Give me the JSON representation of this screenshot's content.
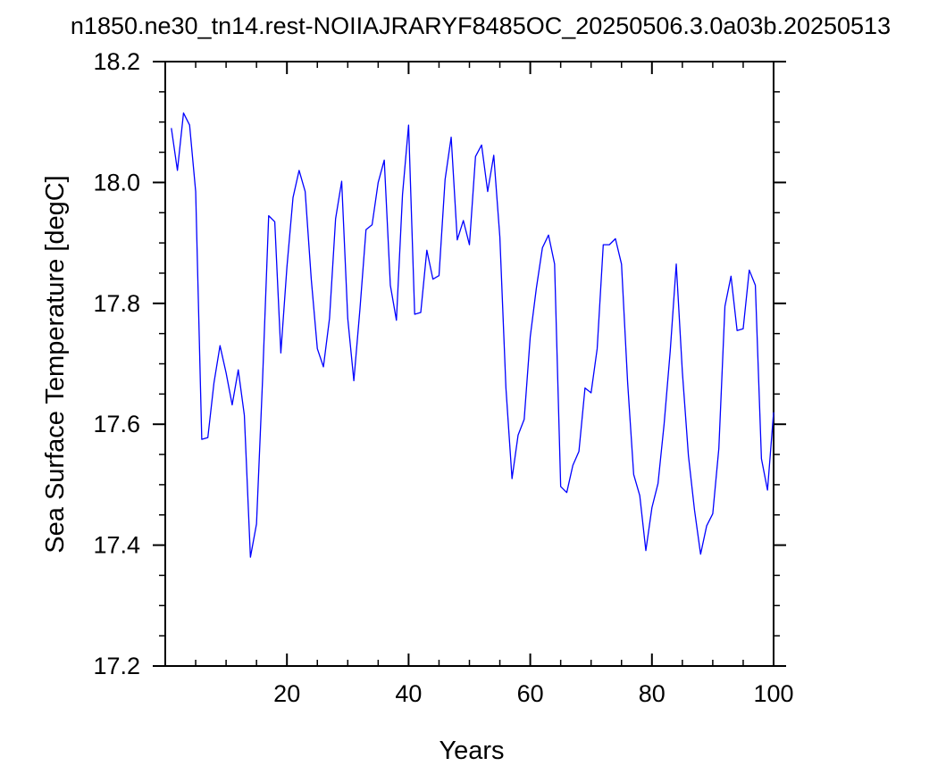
{
  "chart_data": {
    "type": "line",
    "title": "n1850.ne30_tn14.rest-NOIIAJRARYF8485OC_20250506.3.0a03b.20250513",
    "xlabel": "Years",
    "ylabel": "Sea Surface Temperature [degC]",
    "xlim": [
      0,
      100
    ],
    "ylim": [
      17.2,
      18.2
    ],
    "x_major_ticks": [
      20,
      40,
      60,
      80,
      100
    ],
    "x_major_tick_labels": [
      "20",
      "40",
      "60",
      "80",
      "100"
    ],
    "y_major_ticks": [
      17.2,
      17.4,
      17.6,
      17.8,
      18.0,
      18.2
    ],
    "y_major_tick_labels": [
      "17.2",
      "17.4",
      "17.6",
      "17.8",
      "18.0",
      "18.2"
    ],
    "grid": false,
    "line_color": "#0000ff",
    "series": [
      {
        "x": [
          1,
          2,
          3,
          4,
          5,
          6,
          7,
          8,
          9,
          10,
          11,
          12,
          13,
          14,
          15,
          16,
          17,
          18,
          19,
          20,
          21,
          22,
          23,
          24,
          25,
          26,
          27,
          28,
          29,
          30,
          31,
          32,
          33,
          34,
          35,
          36,
          37,
          38,
          39,
          40,
          41,
          42,
          43,
          44,
          45,
          46,
          47,
          48,
          49,
          50,
          51,
          52,
          53,
          54,
          55,
          56,
          57,
          58,
          59,
          60,
          61,
          62,
          63,
          64,
          65,
          66,
          67,
          68,
          69,
          70,
          71,
          72,
          73,
          74,
          75,
          76,
          77,
          78,
          79,
          80,
          81,
          82,
          83,
          84,
          85,
          86,
          87,
          88,
          89,
          90,
          91,
          92,
          93,
          94,
          95,
          96,
          97,
          98,
          99,
          100
        ],
        "values": [
          18.09,
          18.02,
          18.115,
          18.095,
          17.985,
          17.575,
          17.578,
          17.668,
          17.73,
          17.685,
          17.632,
          17.69,
          17.615,
          17.38,
          17.435,
          17.675,
          17.945,
          17.935,
          17.718,
          17.86,
          17.975,
          18.02,
          17.985,
          17.84,
          17.725,
          17.695,
          17.775,
          17.94,
          18.002,
          17.775,
          17.672,
          17.79,
          17.922,
          17.93,
          18.0,
          18.037,
          17.83,
          17.772,
          17.98,
          18.095,
          17.782,
          17.785,
          17.888,
          17.84,
          17.846,
          18.005,
          18.075,
          17.905,
          17.937,
          17.897,
          18.043,
          18.062,
          17.985,
          18.045,
          17.91,
          17.66,
          17.51,
          17.582,
          17.608,
          17.745,
          17.825,
          17.892,
          17.913,
          17.865,
          17.497,
          17.487,
          17.532,
          17.555,
          17.66,
          17.652,
          17.725,
          17.897,
          17.897,
          17.907,
          17.865,
          17.67,
          17.517,
          17.482,
          17.391,
          17.462,
          17.502,
          17.6,
          17.72,
          17.865,
          17.687,
          17.548,
          17.458,
          17.385,
          17.432,
          17.452,
          17.56,
          17.795,
          17.845,
          17.755,
          17.758,
          17.855,
          17.83,
          17.543,
          17.491,
          17.62
        ]
      }
    ]
  }
}
